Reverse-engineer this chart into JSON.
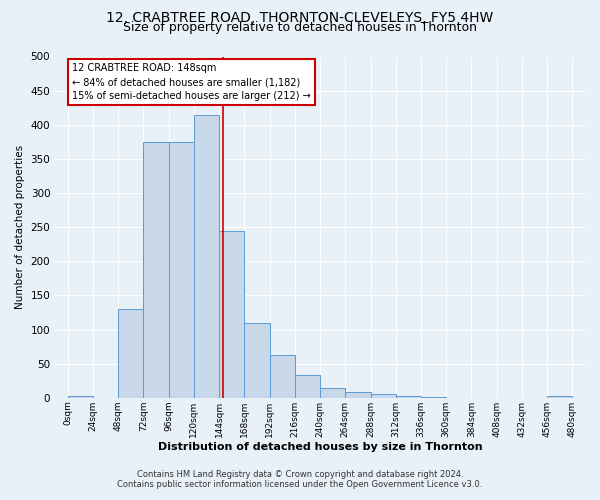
{
  "title": "12, CRABTREE ROAD, THORNTON-CLEVELEYS, FY5 4HW",
  "subtitle": "Size of property relative to detached houses in Thornton",
  "xlabel": "Distribution of detached houses by size in Thornton",
  "ylabel": "Number of detached properties",
  "bin_edges": [
    0,
    24,
    48,
    72,
    96,
    120,
    144,
    168,
    192,
    216,
    240,
    264,
    288,
    312,
    336,
    360,
    384,
    408,
    432,
    456,
    480
  ],
  "bar_heights": [
    3,
    0,
    130,
    375,
    375,
    415,
    245,
    110,
    63,
    33,
    15,
    8,
    5,
    2,
    1,
    0,
    0,
    0,
    0,
    3
  ],
  "bar_color": "#c8d8e8",
  "bar_edge_color": "#5b9bd5",
  "property_size": 148,
  "vline_color": "#cc0000",
  "annotation_text": "12 CRABTREE ROAD: 148sqm\n← 84% of detached houses are smaller (1,182)\n15% of semi-detached houses are larger (212) →",
  "annotation_box_color": "#ffffff",
  "annotation_box_edge": "#cc0000",
  "ylim": [
    0,
    500
  ],
  "xlim": [
    -12,
    492
  ],
  "footnote1": "Contains HM Land Registry data © Crown copyright and database right 2024.",
  "footnote2": "Contains public sector information licensed under the Open Government Licence v3.0.",
  "background_color": "#e8f0f8",
  "plot_bg_color": "#e8f0f8",
  "grid_color": "#ffffff",
  "title_fontsize": 10,
  "subtitle_fontsize": 9,
  "tick_labels": [
    "0sqm",
    "24sqm",
    "48sqm",
    "72sqm",
    "96sqm",
    "120sqm",
    "144sqm",
    "168sqm",
    "192sqm",
    "216sqm",
    "240sqm",
    "264sqm",
    "288sqm",
    "312sqm",
    "336sqm",
    "360sqm",
    "384sqm",
    "408sqm",
    "432sqm",
    "456sqm",
    "480sqm"
  ]
}
